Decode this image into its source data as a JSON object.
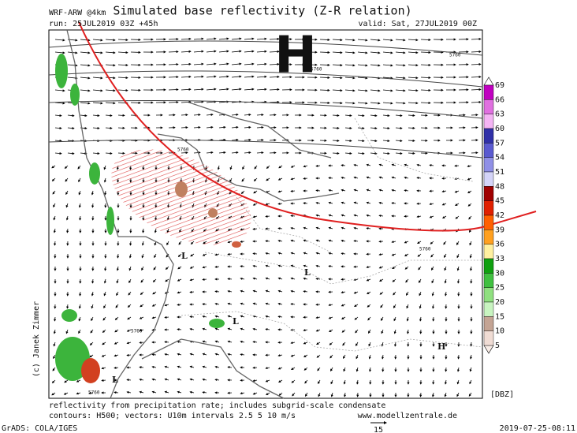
{
  "header": {
    "model": "WRF-ARW @4km",
    "title": "Simulated base reflectivity (Z-R relation)",
    "run": "run: 25JUL2019 03Z +45h",
    "valid": "valid: Sat, 27JUL2019 00Z"
  },
  "map": {
    "high_big": "H",
    "high_small": "H",
    "lows": [
      "L",
      "L",
      "L",
      "L"
    ],
    "contour_labels": [
      "5760",
      "5760",
      "5760",
      "5760",
      "5760",
      "5760"
    ]
  },
  "colorbar": {
    "labels": [
      "69",
      "66",
      "63",
      "60",
      "57",
      "54",
      "51",
      "48",
      "45",
      "42",
      "39",
      "36",
      "33",
      "30",
      "25",
      "20",
      "15",
      "10",
      "5"
    ],
    "colors": [
      "#c000c0",
      "#e070e0",
      "#f4b4f4",
      "#3030a8",
      "#5a5ad0",
      "#9090e6",
      "#d4d4f8",
      "#a00000",
      "#e02000",
      "#ff6000",
      "#ffa020",
      "#fff0a0",
      "#10a010",
      "#40c040",
      "#90e080",
      "#c8f4c0",
      "#c4a494",
      "#f0dcd4"
    ],
    "unit": "[DBZ]"
  },
  "footer": {
    "note1": "reflectivity from precipitation rate; includes subgrid-scale condensate",
    "note2": "contours: H500; vectors: U10m intervals 2.5 5 10 m/s",
    "site": "www.modellzentrale.de",
    "copyright": "(c) Janek Zimmer",
    "software": "GrADS: COLA/IGES",
    "timestamp": "2019-07-25-08:11",
    "vector_scale": "15"
  }
}
